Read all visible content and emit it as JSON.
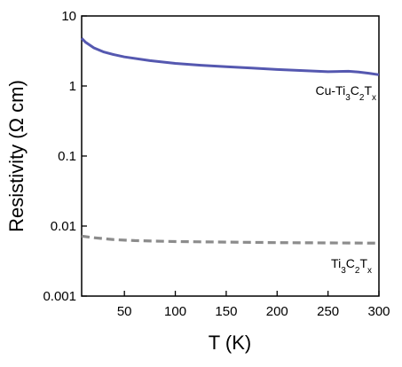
{
  "chart_data": {
    "type": "line",
    "xlabel": "T (K)",
    "ylabel": "Resistivity (Ω cm)",
    "xlim": [
      8,
      300
    ],
    "ylim": [
      0.001,
      10
    ],
    "yscale": "log",
    "x_ticks": [
      50,
      100,
      150,
      200,
      250,
      300
    ],
    "x_tick_labels": [
      "50",
      "100",
      "150",
      "200",
      "250",
      "300"
    ],
    "y_ticks": [
      0.001,
      0.01,
      0.1,
      1,
      10
    ],
    "y_tick_labels": [
      "0.001",
      "0.01",
      "0.1",
      "1",
      "10"
    ],
    "grid": false,
    "legend": "none",
    "series": [
      {
        "name": "Cu-Ti3C2Tx",
        "label_parts": [
          [
            "Cu-Ti",
            false
          ],
          [
            "3",
            true
          ],
          [
            "C",
            false
          ],
          [
            "2",
            true
          ],
          [
            "T",
            false
          ],
          [
            "x",
            true
          ]
        ],
        "color": "#5558b0",
        "style": "solid",
        "x": [
          8,
          12,
          20,
          30,
          40,
          50,
          75,
          100,
          125,
          150,
          175,
          200,
          225,
          250,
          270,
          280,
          290,
          300
        ],
        "y": [
          4.8,
          4.2,
          3.5,
          3.05,
          2.8,
          2.6,
          2.3,
          2.1,
          1.98,
          1.88,
          1.8,
          1.72,
          1.66,
          1.6,
          1.62,
          1.58,
          1.52,
          1.45
        ]
      },
      {
        "name": "Ti3C2Tx",
        "label_parts": [
          [
            "Ti",
            false
          ],
          [
            "3",
            true
          ],
          [
            "C",
            false
          ],
          [
            "2",
            true
          ],
          [
            "T",
            false
          ],
          [
            "x",
            true
          ]
        ],
        "color": "#8c8c8c",
        "style": "dashed",
        "x": [
          8,
          20,
          40,
          60,
          100,
          150,
          200,
          250,
          300
        ],
        "y": [
          0.0072,
          0.0068,
          0.0064,
          0.0062,
          0.006,
          0.0059,
          0.0058,
          0.00575,
          0.0057
        ]
      }
    ]
  }
}
